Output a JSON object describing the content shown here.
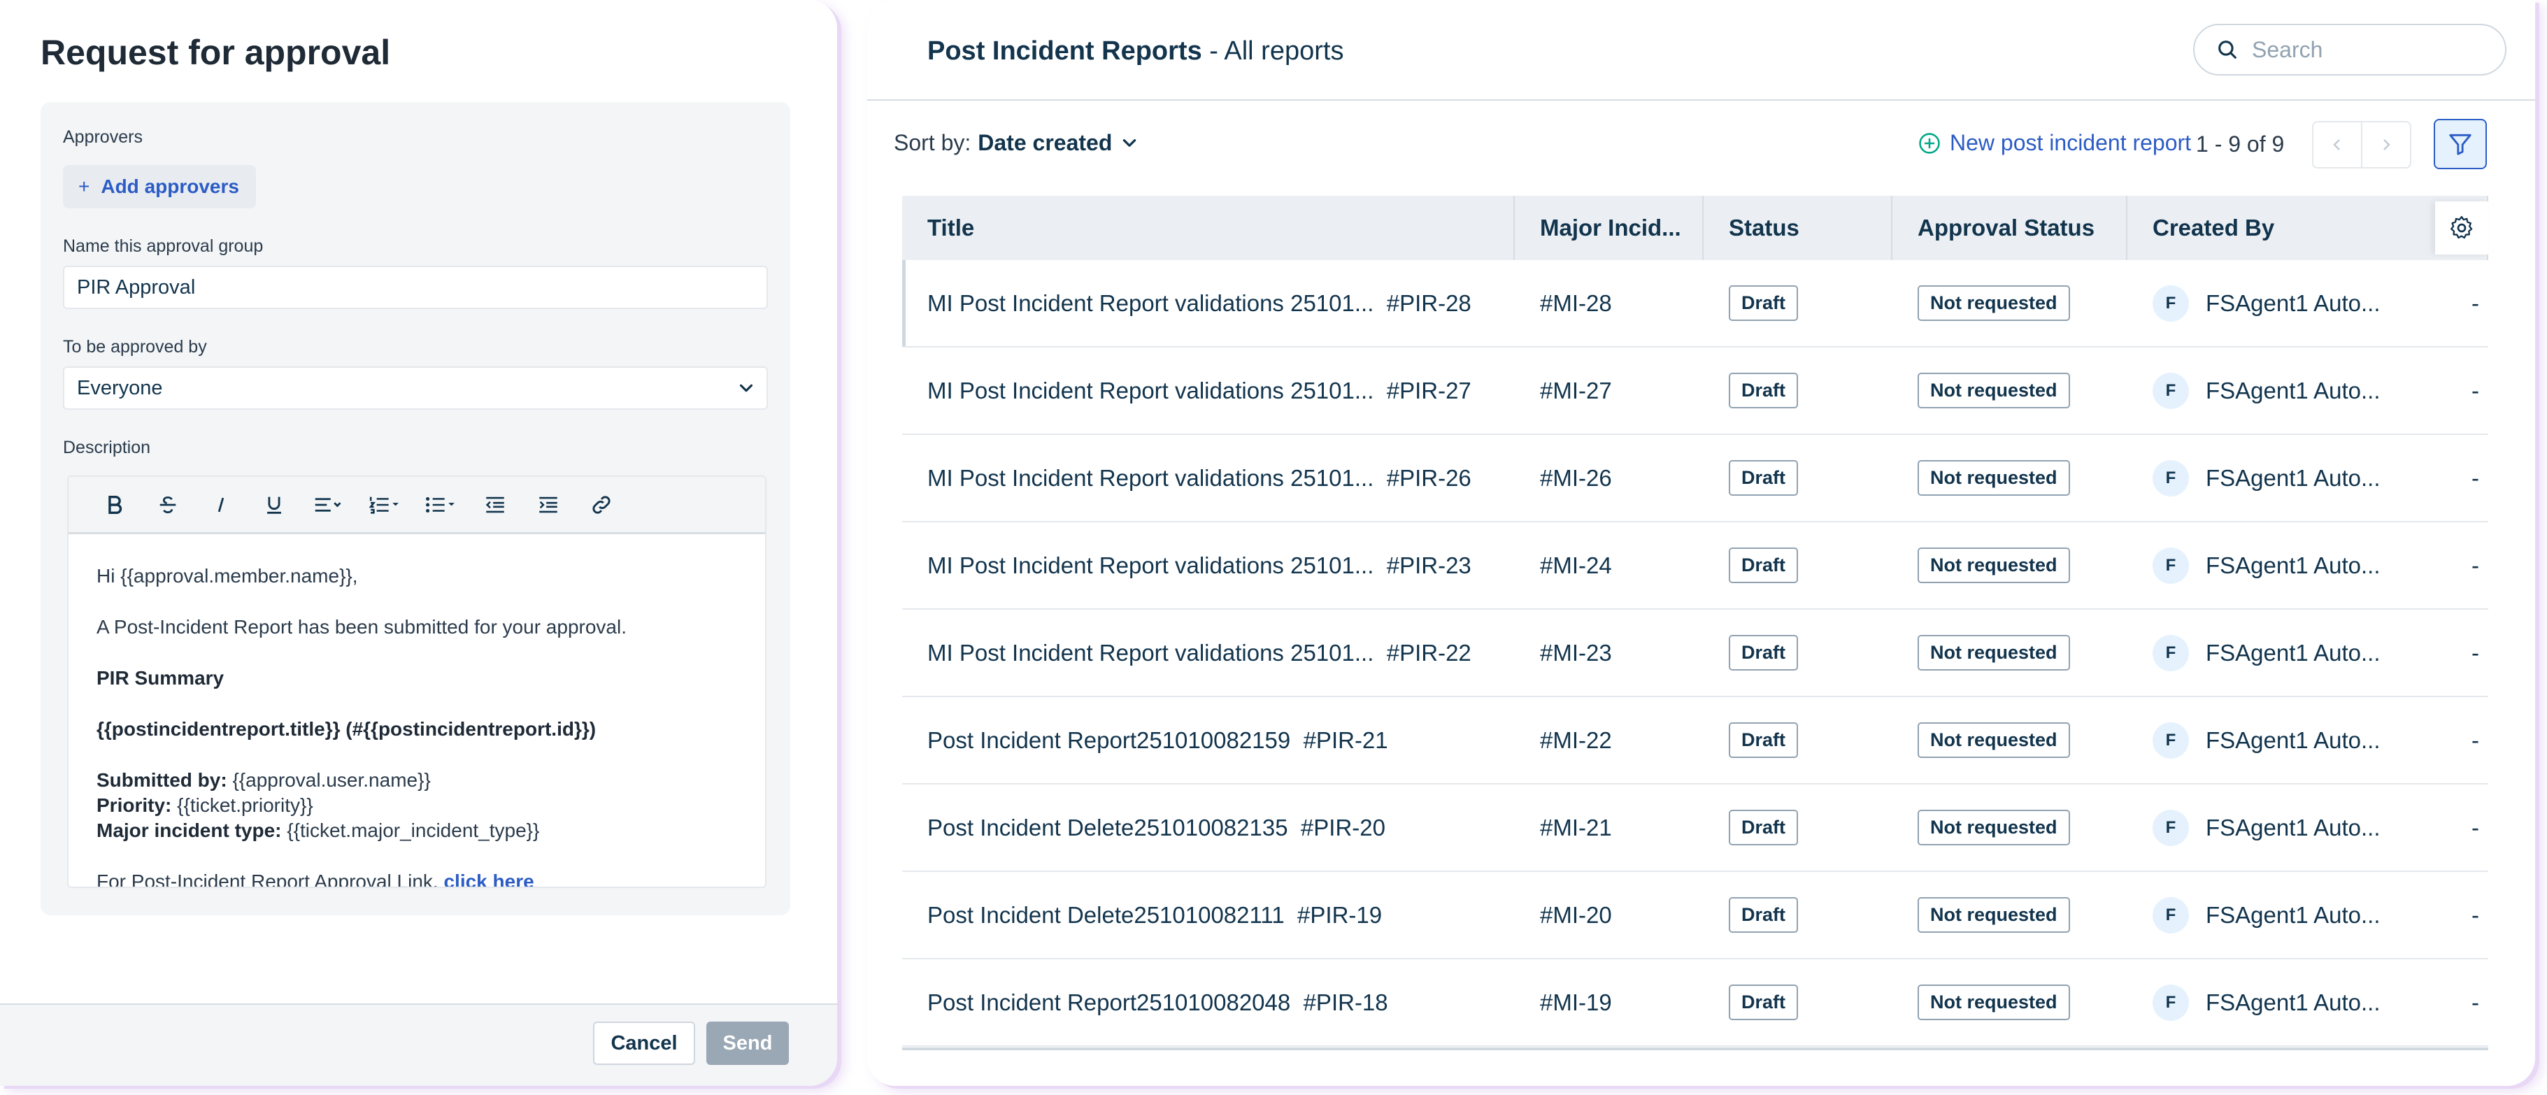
{
  "approval_panel": {
    "title": "Request for approval",
    "approvers_label": "Approvers",
    "add_approvers_label": "Add approvers",
    "group_name_label": "Name this approval group",
    "group_name_value": "PIR Approval",
    "approved_by_label": "To be approved by",
    "approved_by_value": "Everyone",
    "description_label": "Description",
    "description": {
      "greeting": "Hi {{approval.member.name}},",
      "intro": "A Post-Incident Report has been submitted for your approval.",
      "summary_heading": "PIR Summary",
      "summary_title": "{{postincidentreport.title}} (#{{postincidentreport.id}})",
      "submitted_by_label": "Submitted by:",
      "submitted_by_value": "{{approval.user.name}}",
      "priority_label": "Priority:",
      "priority_value": "{{ticket.priority}}",
      "mi_type_label": "Major incident type:",
      "mi_type_value": "{{ticket.major_incident_type}}",
      "link_prefix": "For Post-Incident Report Approval Link,",
      "link_text": "click here"
    },
    "cancel_label": "Cancel",
    "send_label": "Send"
  },
  "reports_panel": {
    "title_strong": "Post Incident Reports",
    "title_rest": " - All reports",
    "search_placeholder": "Search",
    "sort_label": "Sort by:",
    "sort_value": "Date created",
    "new_report_label": "New post incident report",
    "page_count": "1 - 9 of 9",
    "columns": [
      "Title",
      "Major Incid...",
      "Status",
      "Approval Status",
      "Created By"
    ],
    "rows": [
      {
        "title": "MI Post Incident Report validations 25101...",
        "id": "#PIR-28",
        "mi": "#MI-28",
        "status": "Draft",
        "approval": "Not requested",
        "avatar": "F",
        "created_by": "FSAgent1 Auto...",
        "extra": "-"
      },
      {
        "title": "MI Post Incident Report validations 25101...",
        "id": "#PIR-27",
        "mi": "#MI-27",
        "status": "Draft",
        "approval": "Not requested",
        "avatar": "F",
        "created_by": "FSAgent1 Auto...",
        "extra": "-"
      },
      {
        "title": "MI Post Incident Report validations 25101...",
        "id": "#PIR-26",
        "mi": "#MI-26",
        "status": "Draft",
        "approval": "Not requested",
        "avatar": "F",
        "created_by": "FSAgent1 Auto...",
        "extra": "-"
      },
      {
        "title": "MI Post Incident Report validations 25101...",
        "id": "#PIR-23",
        "mi": "#MI-24",
        "status": "Draft",
        "approval": "Not requested",
        "avatar": "F",
        "created_by": "FSAgent1 Auto...",
        "extra": "-"
      },
      {
        "title": "MI Post Incident Report validations 25101...",
        "id": "#PIR-22",
        "mi": "#MI-23",
        "status": "Draft",
        "approval": "Not requested",
        "avatar": "F",
        "created_by": "FSAgent1 Auto...",
        "extra": "-"
      },
      {
        "title": "Post Incident Report251010082159",
        "id": "#PIR-21",
        "mi": "#MI-22",
        "status": "Draft",
        "approval": "Not requested",
        "avatar": "F",
        "created_by": "FSAgent1 Auto...",
        "extra": "-"
      },
      {
        "title": "Post Incident Delete251010082135",
        "id": "#PIR-20",
        "mi": "#MI-21",
        "status": "Draft",
        "approval": "Not requested",
        "avatar": "F",
        "created_by": "FSAgent1 Auto...",
        "extra": "-"
      },
      {
        "title": "Post Incident Delete251010082111",
        "id": "#PIR-19",
        "mi": "#MI-20",
        "status": "Draft",
        "approval": "Not requested",
        "avatar": "F",
        "created_by": "FSAgent1 Auto...",
        "extra": "-"
      },
      {
        "title": "Post Incident Report251010082048",
        "id": "#PIR-18",
        "mi": "#MI-19",
        "status": "Draft",
        "approval": "Not requested",
        "avatar": "F",
        "created_by": "FSAgent1 Auto...",
        "extra": "-"
      }
    ]
  },
  "colors": {
    "brand_blue": "#2c5cc5",
    "text_dark": "#12344d",
    "panel_shadow": "#e9d8f5",
    "send_disabled": "#9aa7b5"
  },
  "icons": {
    "search": "search-icon",
    "sort": "chevron-down-icon",
    "new_report": "plus-circle-icon",
    "filter": "filter-icon",
    "settings": "gear-icon"
  }
}
